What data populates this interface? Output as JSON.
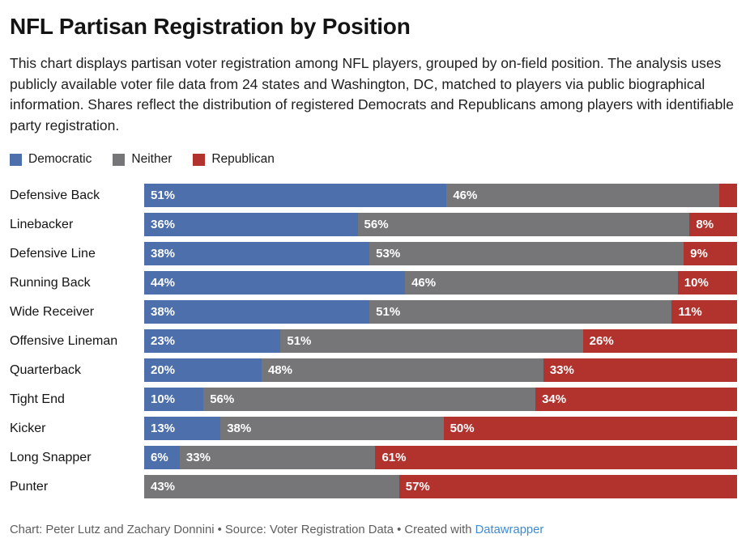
{
  "header": {
    "title": "NFL Partisan Registration by Position",
    "description": "This chart displays partisan voter registration among NFL players, grouped by on-field position. The analysis uses publicly available voter file data from 24 states and Washington, DC, matched to players via public biographical information. Shares reflect the distribution of registered Democrats and Republicans among players with identifiable party registration."
  },
  "legend": {
    "position": "top",
    "items": [
      {
        "label": "Democratic",
        "color": "#4d6fac"
      },
      {
        "label": "Neither",
        "color": "#767679"
      },
      {
        "label": "Republican",
        "color": "#b2322d"
      }
    ]
  },
  "chart_data": {
    "type": "bar",
    "subtype": "horizontal-stacked",
    "unit": "%",
    "xlim": [
      0,
      100
    ],
    "value_labels": "inside-start",
    "label_min_percent": 5,
    "grid": false,
    "categories": [
      "Defensive Back",
      "Linebacker",
      "Defensive Line",
      "Running Back",
      "Wide Receiver",
      "Offensive Lineman",
      "Quarterback",
      "Tight End",
      "Kicker",
      "Long Snapper",
      "Punter"
    ],
    "series": [
      {
        "name": "Democratic",
        "color": "#4d6fac",
        "values": [
          51,
          36,
          38,
          44,
          38,
          23,
          20,
          10,
          13,
          6,
          0
        ]
      },
      {
        "name": "Neither",
        "color": "#767679",
        "values": [
          46,
          56,
          53,
          46,
          51,
          51,
          48,
          56,
          38,
          33,
          43
        ]
      },
      {
        "name": "Republican",
        "color": "#b2322d",
        "values": [
          3,
          8,
          9,
          10,
          11,
          26,
          33,
          34,
          50,
          61,
          57
        ]
      }
    ]
  },
  "footer": {
    "chart_credit": "Chart: Peter Lutz and Zachary Donnini",
    "separator": " • ",
    "source_text": "Source: Voter Registration Data",
    "created_with_text": "Created with ",
    "link_label": "Datawrapper",
    "link_color": "#3d8bd4",
    "text_color": "#5e5e5e"
  }
}
